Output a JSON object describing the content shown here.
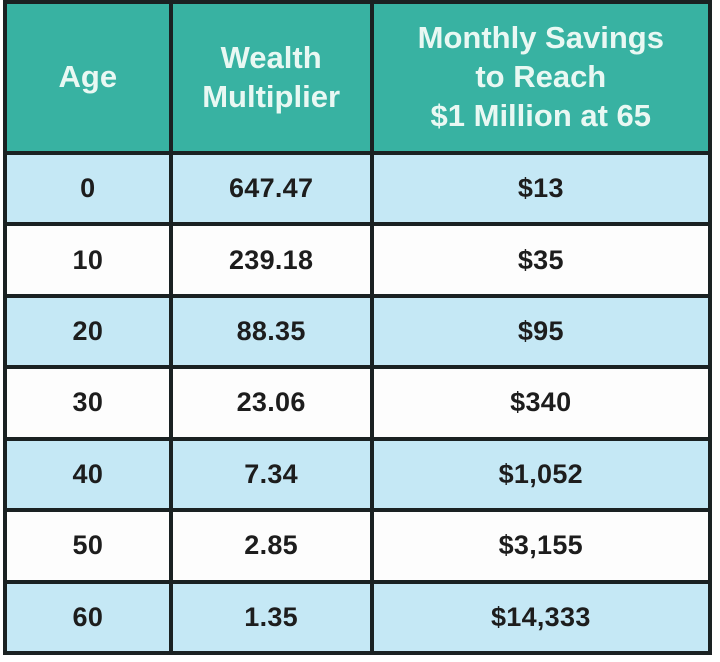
{
  "colors": {
    "header_bg": "#38b2a2",
    "header_text": "#e9f8f3",
    "row_alt_bg": "#c5e8f5",
    "row_bg": "#fdfdfd",
    "border": "#1a2122",
    "cell_text": "#1d1d1d"
  },
  "table": {
    "columns": {
      "age": "Age",
      "multiplier": "Wealth\nMultiplier",
      "savings": "Monthly Savings\nto Reach\n$1 Million at 65"
    },
    "rows": [
      {
        "age": "0",
        "multiplier": "647.47",
        "savings": "$13"
      },
      {
        "age": "10",
        "multiplier": "239.18",
        "savings": "$35"
      },
      {
        "age": "20",
        "multiplier": "88.35",
        "savings": "$95"
      },
      {
        "age": "30",
        "multiplier": "23.06",
        "savings": "$340"
      },
      {
        "age": "40",
        "multiplier": "7.34",
        "savings": "$1,052"
      },
      {
        "age": "50",
        "multiplier": "2.85",
        "savings": "$3,155"
      },
      {
        "age": "60",
        "multiplier": "1.35",
        "savings": "$14,333"
      }
    ]
  },
  "chart_data": {
    "type": "table",
    "columns": [
      "Age",
      "Wealth Multiplier",
      "Monthly Savings to Reach $1 Million at 65"
    ],
    "rows": [
      [
        0,
        647.47,
        13
      ],
      [
        10,
        239.18,
        35
      ],
      [
        20,
        88.35,
        95
      ],
      [
        30,
        23.06,
        340
      ],
      [
        40,
        7.34,
        1052
      ],
      [
        50,
        2.85,
        3155
      ],
      [
        60,
        1.35,
        14333
      ]
    ],
    "title": "",
    "notes": "Alternating light-blue / white row striping starting with light blue at age 0; teal header band"
  }
}
